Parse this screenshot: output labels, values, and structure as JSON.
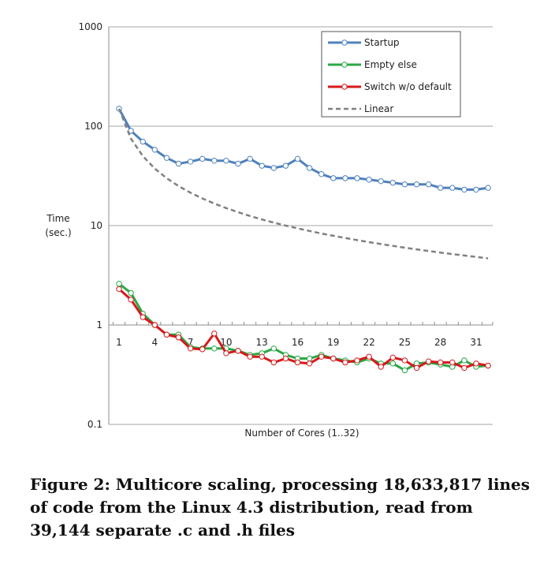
{
  "chart_data": {
    "type": "line",
    "xlabel": "Number of Cores (1..32)",
    "ylabel_line1": "Time",
    "ylabel_line2": "(sec.)",
    "y_scale": "log",
    "ylim": [
      0.1,
      1000
    ],
    "xlim": [
      1,
      32
    ],
    "y_ticks": [
      "0.1",
      "1",
      "10",
      "100",
      "1000"
    ],
    "x_ticks": [
      "1",
      "4",
      "7",
      "10",
      "13",
      "16",
      "19",
      "22",
      "25",
      "28",
      "31"
    ],
    "grid": true,
    "legend_position": "top-right",
    "series": [
      {
        "name": "Startup",
        "color": "#4f81bd",
        "style": "solid-markers",
        "x": [
          1,
          2,
          3,
          4,
          5,
          6,
          7,
          8,
          9,
          10,
          11,
          12,
          13,
          14,
          15,
          16,
          17,
          18,
          19,
          20,
          21,
          22,
          23,
          24,
          25,
          26,
          27,
          28,
          29,
          30,
          31,
          32
        ],
        "y": [
          150,
          90,
          70,
          58,
          48,
          42,
          44,
          47,
          45,
          45,
          42,
          47,
          40,
          38,
          40,
          47,
          38,
          33,
          30,
          30,
          30,
          29,
          28,
          27,
          26,
          26,
          26,
          24,
          24,
          23,
          23,
          24
        ]
      },
      {
        "name": "Empty else",
        "color": "#2aa845",
        "style": "solid-markers",
        "x": [
          1,
          2,
          3,
          4,
          5,
          6,
          7,
          8,
          9,
          10,
          11,
          12,
          13,
          14,
          15,
          16,
          17,
          18,
          19,
          20,
          21,
          22,
          23,
          24,
          25,
          26,
          27,
          28,
          29,
          30,
          31,
          32
        ],
        "y": [
          2.6,
          2.1,
          1.3,
          1.0,
          0.8,
          0.8,
          0.6,
          0.58,
          0.58,
          0.58,
          0.55,
          0.5,
          0.52,
          0.58,
          0.5,
          0.46,
          0.46,
          0.5,
          0.46,
          0.44,
          0.42,
          0.46,
          0.41,
          0.41,
          0.35,
          0.41,
          0.42,
          0.4,
          0.38,
          0.44,
          0.38,
          0.39
        ]
      },
      {
        "name": "Switch w/o default",
        "color": "#d7191c",
        "style": "solid-markers",
        "x": [
          1,
          2,
          3,
          4,
          5,
          6,
          7,
          8,
          9,
          10,
          11,
          12,
          13,
          14,
          15,
          16,
          17,
          18,
          19,
          20,
          21,
          22,
          23,
          24,
          25,
          26,
          27,
          28,
          29,
          30,
          31,
          32
        ],
        "y": [
          2.3,
          1.8,
          1.2,
          1.0,
          0.8,
          0.75,
          0.58,
          0.57,
          0.82,
          0.52,
          0.55,
          0.48,
          0.48,
          0.42,
          0.46,
          0.42,
          0.41,
          0.48,
          0.46,
          0.42,
          0.44,
          0.48,
          0.38,
          0.47,
          0.44,
          0.37,
          0.43,
          0.42,
          0.42,
          0.37,
          0.41,
          0.39
        ]
      },
      {
        "name": "Linear",
        "color": "#808080",
        "style": "dashed",
        "x": [
          1,
          2,
          3,
          4,
          5,
          6,
          7,
          8,
          9,
          10,
          11,
          12,
          13,
          14,
          15,
          16,
          17,
          18,
          19,
          20,
          21,
          22,
          23,
          24,
          25,
          26,
          27,
          28,
          29,
          30,
          31,
          32
        ],
        "y": [
          150,
          75,
          50,
          37.5,
          30,
          25,
          21.43,
          18.75,
          16.67,
          15,
          13.64,
          12.5,
          11.54,
          10.71,
          10,
          9.375,
          8.824,
          8.333,
          7.895,
          7.5,
          7.143,
          6.818,
          6.522,
          6.25,
          6,
          5.769,
          5.556,
          5.357,
          5.172,
          5,
          4.839,
          4.6875
        ]
      }
    ]
  },
  "caption": "Figure 2: Multicore scaling, processing 18,633,817 lines of code from the Linux 4.3 distribution, read from 39,144 separate .c and .h files"
}
